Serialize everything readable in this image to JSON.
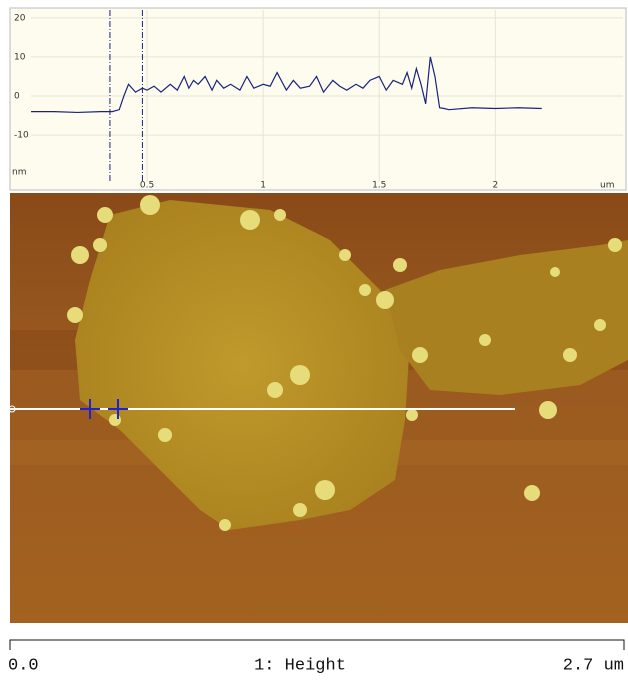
{
  "chart_data": {
    "type": "line",
    "x_label": "um",
    "y_label": "nm",
    "x": [
      0,
      0.1,
      0.2,
      0.3,
      0.35,
      0.38,
      0.4,
      0.42,
      0.45,
      0.48,
      0.5,
      0.53,
      0.56,
      0.6,
      0.63,
      0.66,
      0.68,
      0.7,
      0.72,
      0.75,
      0.78,
      0.8,
      0.83,
      0.86,
      0.9,
      0.93,
      0.96,
      1.0,
      1.03,
      1.06,
      1.1,
      1.13,
      1.16,
      1.2,
      1.23,
      1.26,
      1.3,
      1.33,
      1.36,
      1.4,
      1.43,
      1.46,
      1.5,
      1.53,
      1.56,
      1.6,
      1.62,
      1.64,
      1.66,
      1.68,
      1.7,
      1.72,
      1.74,
      1.76,
      1.78,
      1.8,
      1.9,
      2.0,
      2.1,
      2.2
    ],
    "series": [
      {
        "color": "#1a237e",
        "values": [
          -4,
          -4,
          -4.2,
          -4,
          -4,
          -3.5,
          0,
          3,
          1,
          2,
          1.5,
          2.5,
          1,
          3,
          1.5,
          5,
          2,
          4,
          3,
          5,
          1.5,
          4,
          2,
          3,
          1.5,
          5,
          2,
          3,
          2.5,
          6,
          1.5,
          4,
          2,
          2.5,
          5,
          1,
          4,
          2.5,
          1.5,
          3,
          2,
          4,
          5,
          1.5,
          4,
          3,
          6,
          2,
          7,
          3,
          -2,
          10,
          5,
          -3,
          -3.2,
          -3.5,
          -3,
          -3.2,
          -3,
          -3.2
        ]
      }
    ],
    "cursors": [
      0.34,
      0.48
    ],
    "cursor_color": "#1a237e",
    "xlim": [
      0,
      2.55
    ],
    "xticks": [
      0.5,
      1,
      1.5,
      2
    ],
    "ylim": [
      -22,
      22
    ],
    "yticks": [
      -10,
      0,
      10,
      20
    ],
    "grid": true
  },
  "scale_bar": {
    "start": "0.0",
    "label": "1: Height",
    "end": "2.7 um"
  }
}
